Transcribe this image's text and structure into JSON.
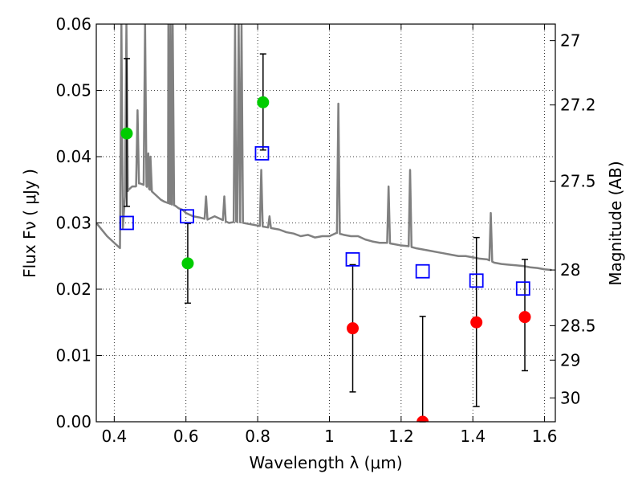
{
  "chart_data": {
    "type": "scatter",
    "title": "",
    "xlabel": "Wavelength  λ (μm)",
    "ylabel": "Flux  Fν  ( μJy )",
    "y2label": "Magnitude (AB)",
    "xlim": [
      0.35,
      1.63
    ],
    "ylim": [
      0.0,
      0.06
    ],
    "grid": true,
    "x_ticks": [
      0.4,
      0.6,
      0.8,
      1.0,
      1.2,
      1.4,
      1.6
    ],
    "x_tick_labels": [
      "0.4",
      "0.6",
      "0.8",
      "1",
      "1.2",
      "1.4",
      "1.6"
    ],
    "y_ticks": [
      0.0,
      0.01,
      0.02,
      0.03,
      0.04,
      0.05,
      0.06
    ],
    "y_tick_labels": [
      "0.00",
      "0.01",
      "0.02",
      "0.03",
      "0.04",
      "0.05",
      "0.06"
    ],
    "y2_ticks": [
      {
        "flux": 0.0575,
        "label": "27"
      },
      {
        "flux": 0.0478,
        "label": "27.2"
      },
      {
        "flux": 0.0363,
        "label": "27.5"
      },
      {
        "flux": 0.0229,
        "label": "28"
      },
      {
        "flux": 0.0145,
        "label": "28.5"
      },
      {
        "flux": 0.0093,
        "label": "29"
      },
      {
        "flux": 0.0036,
        "label": "30"
      }
    ],
    "colors": {
      "green": "#00cc00",
      "red": "#ff0000",
      "blue": "#0000ff",
      "model": "#808080",
      "errorbar": "#000000"
    },
    "series": [
      {
        "kind": "model-spectrum",
        "color": "#808080",
        "x": [
          0.35,
          0.38,
          0.4,
          0.41,
          0.42,
          0.43,
          0.44,
          0.45,
          0.46,
          0.47,
          0.48,
          0.49,
          0.5,
          0.51,
          0.52,
          0.53,
          0.54,
          0.55,
          0.56,
          0.57,
          0.58,
          0.59,
          0.6,
          0.62,
          0.64,
          0.66,
          0.68,
          0.7,
          0.72,
          0.74,
          0.76,
          0.78,
          0.8,
          0.82,
          0.84,
          0.86,
          0.88,
          0.9,
          0.92,
          0.94,
          0.96,
          0.98,
          1.0,
          1.02,
          1.04,
          1.06,
          1.08,
          1.1,
          1.12,
          1.14,
          1.16,
          1.18,
          1.2,
          1.22,
          1.24,
          1.26,
          1.28,
          1.3,
          1.32,
          1.34,
          1.36,
          1.38,
          1.4,
          1.42,
          1.44,
          1.46,
          1.48,
          1.5,
          1.52,
          1.54,
          1.56,
          1.58,
          1.6,
          1.62
        ],
        "y": [
          0.03,
          0.028,
          0.027,
          0.0265,
          0.026,
          0.034,
          0.035,
          0.0355,
          0.0355,
          0.036,
          0.0358,
          0.0355,
          0.035,
          0.0345,
          0.034,
          0.0335,
          0.0332,
          0.033,
          0.0328,
          0.0326,
          0.0322,
          0.032,
          0.0315,
          0.031,
          0.0308,
          0.0305,
          0.031,
          0.0305,
          0.03,
          0.0302,
          0.03,
          0.0298,
          0.0296,
          0.0294,
          0.0292,
          0.029,
          0.0286,
          0.0284,
          0.028,
          0.0282,
          0.0278,
          0.028,
          0.028,
          0.0285,
          0.0282,
          0.028,
          0.028,
          0.0275,
          0.0272,
          0.027,
          0.027,
          0.0268,
          0.0266,
          0.0265,
          0.0262,
          0.026,
          0.0258,
          0.0256,
          0.0254,
          0.0252,
          0.025,
          0.025,
          0.0248,
          0.0246,
          0.0245,
          0.024,
          0.0238,
          0.0237,
          0.0236,
          0.0235,
          0.0233,
          0.0232,
          0.023,
          0.0229
        ],
        "emission_lines": [
          {
            "x": 0.42,
            "peak": 0.06
          },
          {
            "x": 0.434,
            "peak": 0.06
          },
          {
            "x": 0.465,
            "peak": 0.047
          },
          {
            "x": 0.486,
            "peak": 0.06
          },
          {
            "x": 0.495,
            "peak": 0.0405
          },
          {
            "x": 0.501,
            "peak": 0.04
          },
          {
            "x": 0.551,
            "peak": 0.06
          },
          {
            "x": 0.557,
            "peak": 0.06
          },
          {
            "x": 0.563,
            "peak": 0.06
          },
          {
            "x": 0.656,
            "peak": 0.034
          },
          {
            "x": 0.707,
            "peak": 0.034
          },
          {
            "x": 0.737,
            "peak": 0.06
          },
          {
            "x": 0.747,
            "peak": 0.06
          },
          {
            "x": 0.755,
            "peak": 0.06
          },
          {
            "x": 0.81,
            "peak": 0.038
          },
          {
            "x": 0.833,
            "peak": 0.031
          },
          {
            "x": 1.025,
            "peak": 0.048
          },
          {
            "x": 1.165,
            "peak": 0.0355
          },
          {
            "x": 1.225,
            "peak": 0.038
          },
          {
            "x": 1.45,
            "peak": 0.0315
          }
        ]
      },
      {
        "kind": "open-squares",
        "color": "#0000ff",
        "points": [
          {
            "x": 0.435,
            "y": 0.03
          },
          {
            "x": 0.603,
            "y": 0.031
          },
          {
            "x": 0.812,
            "y": 0.0405
          },
          {
            "x": 1.065,
            "y": 0.0245
          },
          {
            "x": 1.26,
            "y": 0.0227
          },
          {
            "x": 1.41,
            "y": 0.0213
          },
          {
            "x": 1.54,
            "y": 0.0201
          }
        ]
      },
      {
        "kind": "filled-circles-green",
        "color": "#00cc00",
        "points": [
          {
            "x": 0.435,
            "y": 0.0435,
            "err_low": 0.0325,
            "err_high": 0.0548
          },
          {
            "x": 0.605,
            "y": 0.0239,
            "err_low": 0.0179,
            "err_high": 0.0299
          },
          {
            "x": 0.815,
            "y": 0.0482,
            "err_low": 0.041,
            "err_high": 0.0555
          }
        ]
      },
      {
        "kind": "filled-circles-red",
        "color": "#ff0000",
        "points": [
          {
            "x": 1.065,
            "y": 0.0141,
            "err_low": 0.0045,
            "err_high": 0.0237
          },
          {
            "x": 1.26,
            "y": 0.0,
            "err_low": 0.0,
            "err_high": 0.0159
          },
          {
            "x": 1.41,
            "y": 0.015,
            "err_low": 0.0023,
            "err_high": 0.0278
          },
          {
            "x": 1.545,
            "y": 0.0158,
            "err_low": 0.0077,
            "err_high": 0.0245
          }
        ]
      }
    ]
  }
}
